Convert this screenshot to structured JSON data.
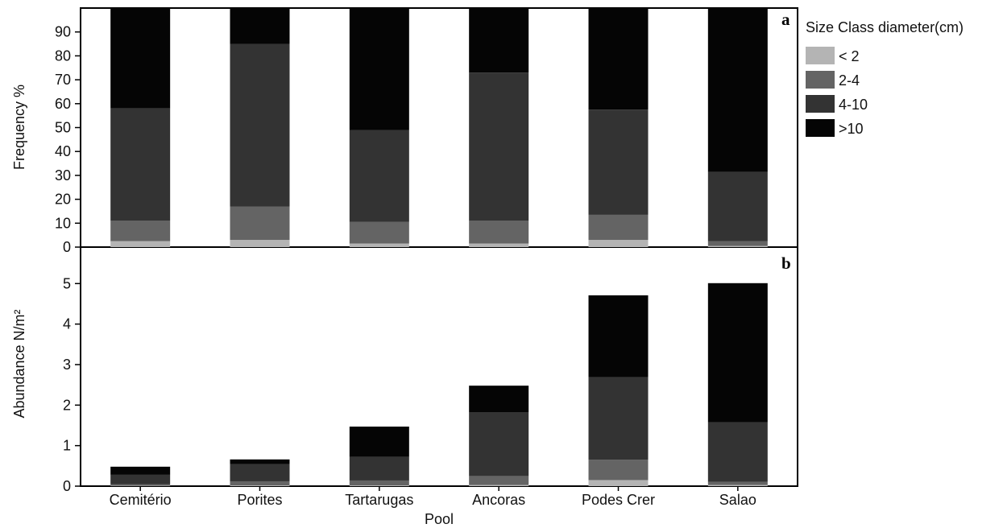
{
  "chart_data": [
    {
      "panel": "a",
      "type": "bar",
      "stacked": true,
      "categories": [
        "Cemitério",
        "Porites",
        "Tartarugas",
        "Ancoras",
        "Podes Crer",
        "Salao"
      ],
      "ylabel": "Frequency %",
      "ylim": [
        0,
        100
      ],
      "yticks": [
        0,
        10,
        20,
        30,
        40,
        50,
        60,
        70,
        80,
        90
      ],
      "series": [
        {
          "name": "< 2",
          "values": [
            2.5,
            3,
            1.5,
            1.5,
            3,
            0.5
          ]
        },
        {
          "name": "2-4",
          "values": [
            8.5,
            14,
            9,
            9.5,
            10.5,
            2
          ]
        },
        {
          "name": "4-10",
          "values": [
            47,
            68,
            38.5,
            62,
            44,
            29
          ]
        },
        {
          "name": ">10",
          "values": [
            42,
            15,
            51,
            27,
            42.5,
            68.5
          ]
        }
      ]
    },
    {
      "panel": "b",
      "type": "bar",
      "stacked": true,
      "categories": [
        "Cemitério",
        "Porites",
        "Tartarugas",
        "Ancoras",
        "Podes Crer",
        "Salao"
      ],
      "xlabel": "Pool",
      "ylabel": "Abundance N/m²",
      "ylim": [
        0,
        5.9
      ],
      "yticks": [
        0,
        1,
        2,
        3,
        4,
        5
      ],
      "series": [
        {
          "name": "< 2",
          "values": [
            0.01,
            0.02,
            0.02,
            0.03,
            0.15,
            0.03
          ]
        },
        {
          "name": "2-4",
          "values": [
            0.04,
            0.1,
            0.12,
            0.22,
            0.5,
            0.08
          ]
        },
        {
          "name": "4-10",
          "values": [
            0.23,
            0.42,
            0.58,
            1.57,
            2.04,
            1.47
          ]
        },
        {
          "name": ">10",
          "values": [
            0.2,
            0.12,
            0.75,
            0.66,
            2.02,
            3.43
          ]
        }
      ]
    }
  ],
  "legend": {
    "title": "Size Class diameter(cm)",
    "placement": "right",
    "items": [
      {
        "label": "< 2",
        "color": "#b4b4b4"
      },
      {
        "label": "2-4",
        "color": "#646464"
      },
      {
        "label": "4-10",
        "color": "#333333"
      },
      {
        "label": ">10",
        "color": "#050505"
      }
    ]
  },
  "colors": {
    "< 2": "#b4b4b4",
    "2-4": "#646464",
    "4-10": "#333333",
    ">10": "#050505"
  },
  "panel_letters": {
    "a": "a",
    "b": "b"
  }
}
